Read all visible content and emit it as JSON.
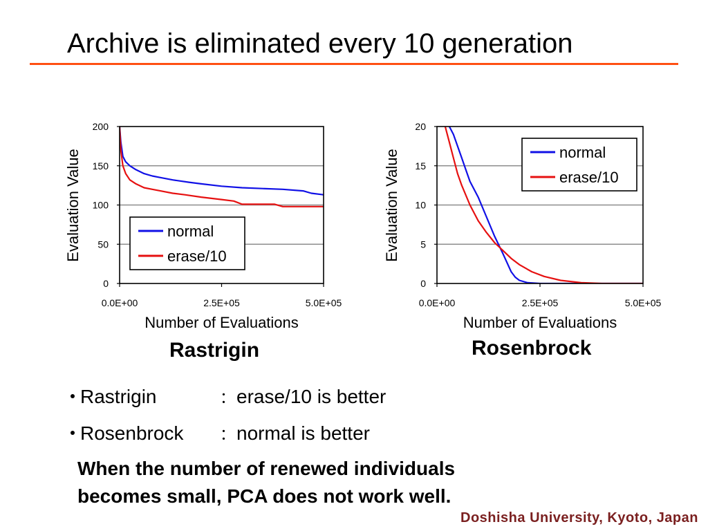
{
  "slide": {
    "title": "Archive is eliminated every 10 generation",
    "captions": [
      "Rastrigin",
      "Rosenbrock"
    ],
    "bullets": [
      {
        "term": "Rastrigin",
        "colon": "：",
        "text": "erase/10 is better"
      },
      {
        "term": "Rosenbrock",
        "colon": "：",
        "text": "normal is better"
      }
    ],
    "note_line1": "When the number of renewed individuals",
    "note_line2": "becomes small, PCA does not work well.",
    "footer": "Doshisha University, Kyoto, Japan"
  },
  "chart_data": [
    {
      "type": "line",
      "xlabel": "Number of Evaluations",
      "ylabel": "Evaluation Value",
      "xlim": [
        0,
        500000
      ],
      "ylim": [
        0,
        200
      ],
      "xticks": [
        0,
        250000,
        500000
      ],
      "xtick_labels": [
        "0.0E+00",
        "2.5E+05",
        "5.0E+05"
      ],
      "yticks": [
        0,
        50,
        100,
        150,
        200
      ],
      "ytick_labels": [
        "0",
        "50",
        "100",
        "150",
        "200"
      ],
      "grid": "horizontal",
      "legend_position": "bottom-left",
      "series": [
        {
          "name": "normal",
          "color": "#1010e6",
          "x": [
            0,
            3000,
            8000,
            15000,
            25000,
            40000,
            60000,
            80000,
            100000,
            130000,
            170000,
            200000,
            250000,
            300000,
            350000,
            400000,
            450000,
            470000,
            500000
          ],
          "y": [
            200,
            180,
            162,
            155,
            150,
            145,
            140,
            137,
            135,
            132,
            129,
            127,
            124,
            122,
            121,
            120,
            118,
            115,
            113
          ]
        },
        {
          "name": "erase/10",
          "color": "#e61010",
          "x": [
            0,
            3000,
            8000,
            15000,
            25000,
            40000,
            60000,
            80000,
            100000,
            130000,
            160000,
            200000,
            250000,
            280000,
            300000,
            380000,
            400000,
            500000
          ],
          "y": [
            200,
            170,
            150,
            140,
            132,
            127,
            122,
            120,
            118,
            115,
            113,
            110,
            107,
            105,
            101,
            101,
            98,
            98
          ]
        }
      ]
    },
    {
      "type": "line",
      "xlabel": "Number of Evaluations",
      "ylabel": "Evaluation Value",
      "xlim": [
        0,
        500000
      ],
      "ylim": [
        0,
        20
      ],
      "xticks": [
        0,
        250000,
        500000
      ],
      "xtick_labels": [
        "0.0E+00",
        "2.5E+05",
        "5.0E+05"
      ],
      "yticks": [
        0,
        5,
        10,
        15,
        20
      ],
      "ytick_labels": [
        "0",
        "5",
        "10",
        "15",
        "20"
      ],
      "grid": "horizontal",
      "legend_position": "top-right",
      "series": [
        {
          "name": "normal",
          "color": "#1010e6",
          "x": [
            30000,
            40000,
            50000,
            60000,
            70000,
            80000,
            100000,
            120000,
            140000,
            160000,
            180000,
            190000,
            200000,
            220000,
            250000,
            500000
          ],
          "y": [
            20,
            19,
            17.5,
            16,
            14.5,
            13,
            11,
            8.5,
            6,
            3.8,
            1.5,
            0.8,
            0.4,
            0.1,
            0,
            0
          ]
        },
        {
          "name": "erase/10",
          "color": "#e61010",
          "x": [
            20000,
            30000,
            40000,
            50000,
            60000,
            80000,
            100000,
            120000,
            140000,
            160000,
            180000,
            200000,
            230000,
            260000,
            300000,
            350000,
            400000,
            500000
          ],
          "y": [
            20,
            18,
            16,
            14,
            12.5,
            10,
            8,
            6.5,
            5.2,
            4.2,
            3.2,
            2.4,
            1.5,
            0.9,
            0.4,
            0.1,
            0,
            0
          ]
        }
      ]
    }
  ]
}
